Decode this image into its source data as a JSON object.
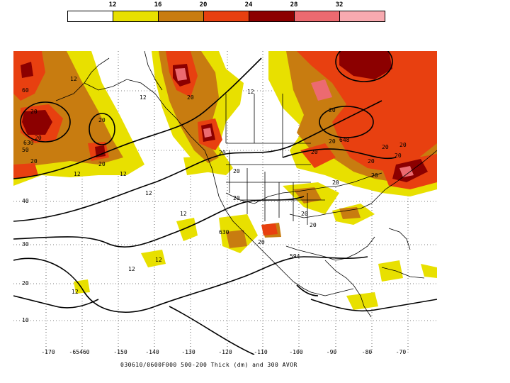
{
  "colorbar": {
    "ticks": [
      "12",
      "16",
      "20",
      "24",
      "28",
      "32"
    ],
    "colors": [
      "#ffffff",
      "#e8e000",
      "#c87c10",
      "#e84010",
      "#8c0000",
      "#ec6a70",
      "#f8aab0"
    ]
  },
  "lat_labels": [
    "60",
    "50",
    "40",
    "30",
    "20",
    "10"
  ],
  "lon_labels": [
    "-170",
    "-65460",
    "-150",
    "-140",
    "-130",
    "-120",
    "-110",
    "-100",
    "-90",
    "-80",
    "-70"
  ],
  "contour_labels": [
    "12",
    "20",
    "12",
    "20",
    "20",
    "20",
    "12",
    "20",
    "20",
    "20",
    "20",
    "20",
    "20",
    "20",
    "12",
    "12",
    "12",
    "20",
    "12",
    "20",
    "20",
    "12",
    "12",
    "12",
    "20",
    "20",
    "20",
    "20",
    "20",
    "20",
    "20"
  ],
  "thickness_labels": [
    "630",
    "648",
    "594",
    "630"
  ],
  "caption": "030610/0600F000 500-200 Thick (dm) and 300 AVOR"
}
